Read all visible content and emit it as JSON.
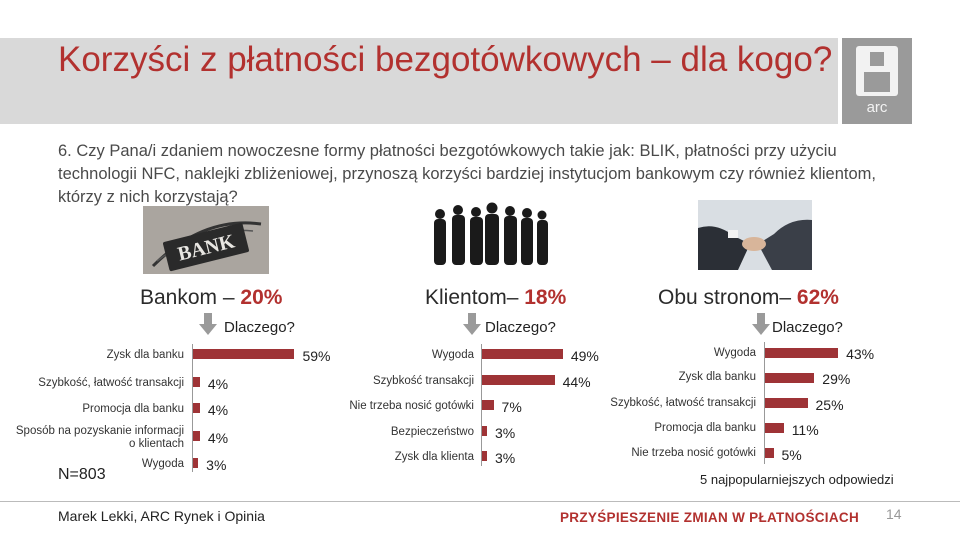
{
  "slide": {
    "title": "Korzyści z płatności bezgotówkowych – dla kogo?",
    "question": "6. Czy Pana/i zdaniem nowoczesne formy płatności bezgotówkowych takie jak: BLIK, płatności przy użyciu technologii NFC, naklejki zbliżeniowej, przynoszą korzyści bardziej instytucjom bankowym czy również klientom, którzy z nich korzystają?",
    "sample": "N=803",
    "top_note": "5 najpopularniejszych odpowiedzi",
    "author": "Marek Lekki, ARC Rynek i Opinia",
    "slogan": "PRZYŚPIESZENIE ZMIAN W PŁATNOŚCIACH",
    "page_number": "14",
    "logo_text": "arc",
    "bank_sign_text": "BANK",
    "accent_color": "#b2312f",
    "bar_color": "#9e3336"
  },
  "chart_data": [
    {
      "type": "bar",
      "orientation": "horizontal",
      "group_label": "Bankom –",
      "group_value": "20%",
      "question_label": "Dlaczego?",
      "categories": [
        "Zysk dla banku",
        "Szybkość, łatwość transakcji",
        "Promocja dla banku",
        "Sposób na pozyskanie informacji o klientach",
        "Wygoda"
      ],
      "values": [
        59,
        4,
        4,
        4,
        3
      ],
      "value_labels": [
        "59%",
        "4%",
        "4%",
        "4%",
        "3%"
      ],
      "unit": "%"
    },
    {
      "type": "bar",
      "orientation": "horizontal",
      "group_label": "Klientom–",
      "group_value": "18%",
      "question_label": "Dlaczego?",
      "categories": [
        "Wygoda",
        "Szybkość transakcji",
        "Nie trzeba nosić gotówki",
        "Bezpieczeństwo",
        "Zysk dla klienta"
      ],
      "values": [
        49,
        44,
        7,
        3,
        3
      ],
      "value_labels": [
        "49%",
        "44%",
        "7%",
        "3%",
        "3%"
      ],
      "unit": "%"
    },
    {
      "type": "bar",
      "orientation": "horizontal",
      "group_label": "Obu stronom–",
      "group_value": "62%",
      "question_label": "Dlaczego?",
      "categories": [
        "Wygoda",
        "Zysk dla banku",
        "Szybkość, łatwość transakcji",
        "Promocja dla banku",
        "Nie trzeba nosić gotówki"
      ],
      "values": [
        43,
        29,
        25,
        11,
        5
      ],
      "value_labels": [
        "43%",
        "29%",
        "25%",
        "11%",
        "5%"
      ],
      "unit": "%"
    }
  ]
}
